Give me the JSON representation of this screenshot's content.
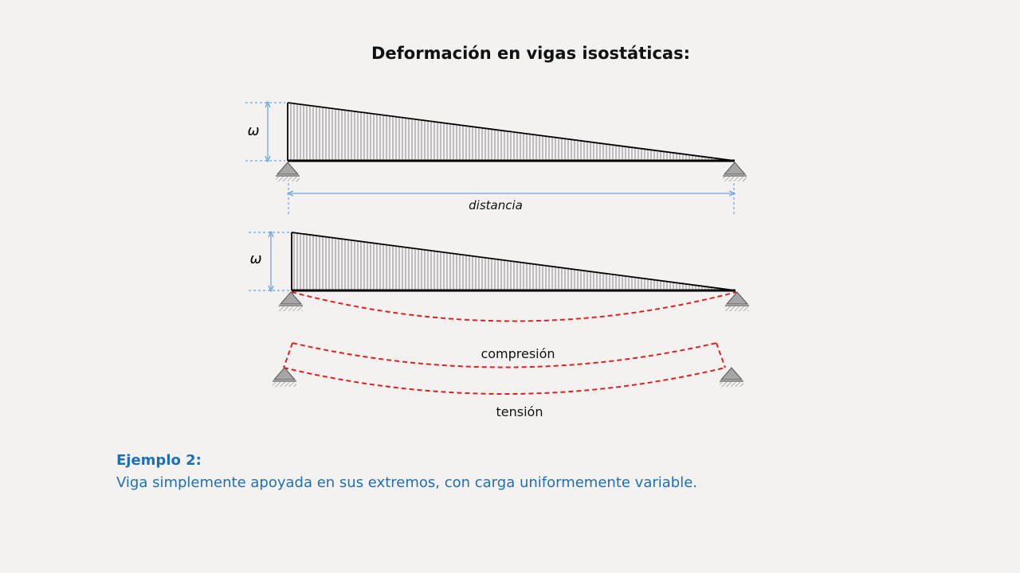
{
  "slide": {
    "title": "Deformación en vigas isostáticas:",
    "diagram1": {
      "load_label": "ω",
      "span_label": "distancia"
    },
    "diagram2": {
      "load_label": "ω"
    },
    "diagram3": {
      "top_label": "compresión",
      "bottom_label": "tensión"
    },
    "caption": {
      "heading": "Ejemplo 2:",
      "text": "Viga simplemente apoyada en sus extremos, con carga uniformemente variable."
    }
  },
  "colors": {
    "dimension": "#4a90d9",
    "deflection": "#e02020",
    "beam": "#000000",
    "support": "#a6a6a6",
    "caption": "#1f6fb5"
  }
}
